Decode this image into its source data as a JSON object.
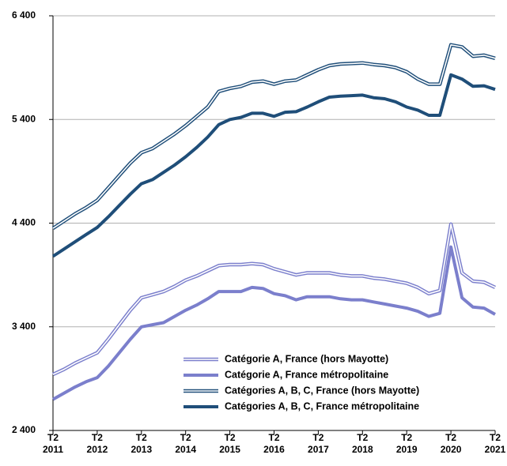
{
  "chart_data": {
    "type": "line",
    "categories": [
      "T2 2011",
      null,
      null,
      null,
      "T2 2012",
      null,
      null,
      null,
      "T2 2013",
      null,
      null,
      null,
      "T2 2014",
      null,
      null,
      null,
      "T2 2015",
      null,
      null,
      null,
      "T2 2016",
      null,
      null,
      null,
      "T2 2017",
      null,
      null,
      null,
      "T2 2018",
      null,
      null,
      null,
      "T2 2019",
      null,
      null,
      null,
      "T2 2020",
      null,
      null,
      null,
      "T2 2021"
    ],
    "ylim": [
      2400,
      6400
    ],
    "yticks": [
      {
        "value": 2400,
        "label": "2 400"
      },
      {
        "value": 3400,
        "label": "3 400"
      },
      {
        "value": 4400,
        "label": "4 400"
      },
      {
        "value": 5400,
        "label": "5 400"
      },
      {
        "value": 6400,
        "label": "6 400"
      }
    ],
    "grid": true,
    "legend": "lower-right",
    "series": [
      {
        "name": "Catégorie A, France (hors Mayotte)",
        "color": "#7b7fcc",
        "style": "double",
        "values": [
          2940,
          2990,
          3050,
          3100,
          3150,
          3280,
          3420,
          3560,
          3680,
          3710,
          3740,
          3790,
          3850,
          3890,
          3940,
          3990,
          4000,
          4000,
          4010,
          4000,
          3960,
          3930,
          3900,
          3920,
          3920,
          3920,
          3900,
          3890,
          3890,
          3870,
          3860,
          3840,
          3820,
          3780,
          3720,
          3750,
          4390,
          3920,
          3840,
          3830,
          3780
        ]
      },
      {
        "name": "Catégorie A, France métropolitaine",
        "color": "#7b7fcc",
        "style": "solid",
        "values": [
          2700,
          2760,
          2820,
          2870,
          2910,
          3020,
          3150,
          3280,
          3400,
          3420,
          3440,
          3500,
          3560,
          3610,
          3670,
          3740,
          3740,
          3740,
          3780,
          3770,
          3720,
          3700,
          3660,
          3690,
          3690,
          3690,
          3670,
          3660,
          3660,
          3640,
          3620,
          3600,
          3580,
          3550,
          3500,
          3530,
          4170,
          3680,
          3590,
          3580,
          3520
        ]
      },
      {
        "name": "Catégories A, B, C, France (hors Mayotte)",
        "color": "#1f4e79",
        "style": "double",
        "values": [
          4350,
          4420,
          4490,
          4550,
          4620,
          4740,
          4860,
          4980,
          5080,
          5120,
          5190,
          5260,
          5340,
          5430,
          5520,
          5670,
          5700,
          5720,
          5760,
          5770,
          5740,
          5770,
          5780,
          5830,
          5880,
          5920,
          5935,
          5940,
          5945,
          5930,
          5920,
          5900,
          5860,
          5790,
          5740,
          5740,
          6120,
          6100,
          6010,
          6020,
          5990
        ]
      },
      {
        "name": "Catégories A, B, C, France métropolitaine",
        "color": "#1f4e79",
        "style": "solid",
        "values": [
          4080,
          4150,
          4220,
          4290,
          4358,
          4460,
          4570,
          4680,
          4780,
          4820,
          4890,
          4960,
          5040,
          5130,
          5230,
          5350,
          5400,
          5420,
          5460,
          5460,
          5430,
          5470,
          5475,
          5520,
          5570,
          5615,
          5625,
          5630,
          5635,
          5610,
          5600,
          5570,
          5520,
          5490,
          5440,
          5440,
          5830,
          5790,
          5720,
          5725,
          5690
        ]
      }
    ]
  }
}
